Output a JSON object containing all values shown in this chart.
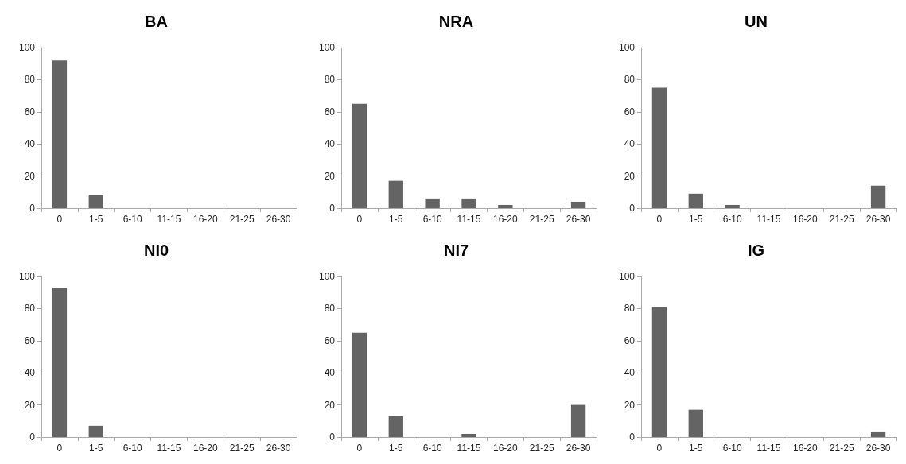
{
  "chart_data": [
    {
      "type": "bar",
      "title": "BA",
      "categories": [
        "0",
        "1-5",
        "6-10",
        "11-15",
        "16-20",
        "21-25",
        "26-30"
      ],
      "values": [
        92,
        8,
        0,
        0,
        0,
        0,
        0
      ],
      "color": "#646464",
      "ylim": [
        0,
        100
      ],
      "yticks": [
        0,
        20,
        40,
        60,
        80,
        100
      ],
      "grid": false
    },
    {
      "type": "bar",
      "title": "NRA",
      "categories": [
        "0",
        "1-5",
        "6-10",
        "11-15",
        "16-20",
        "21-25",
        "26-30"
      ],
      "values": [
        65,
        17,
        6,
        6,
        2,
        0,
        4
      ],
      "color": "#646464",
      "ylim": [
        0,
        100
      ],
      "yticks": [
        0,
        20,
        40,
        60,
        80,
        100
      ],
      "grid": false
    },
    {
      "type": "bar",
      "title": "UN",
      "categories": [
        "0",
        "1-5",
        "6-10",
        "11-15",
        "16-20",
        "21-25",
        "26-30"
      ],
      "values": [
        75,
        9,
        2,
        0,
        0,
        0,
        14
      ],
      "color": "#646464",
      "ylim": [
        0,
        100
      ],
      "yticks": [
        0,
        20,
        40,
        60,
        80,
        100
      ],
      "grid": false
    },
    {
      "type": "bar",
      "title": "NI0",
      "categories": [
        "0",
        "1-5",
        "6-10",
        "11-15",
        "16-20",
        "21-25",
        "26-30"
      ],
      "values": [
        93,
        7,
        0,
        0,
        0,
        0,
        0
      ],
      "color": "#646464",
      "ylim": [
        0,
        100
      ],
      "yticks": [
        0,
        20,
        40,
        60,
        80,
        100
      ],
      "grid": false
    },
    {
      "type": "bar",
      "title": "NI7",
      "categories": [
        "0",
        "1-5",
        "6-10",
        "11-15",
        "16-20",
        "21-25",
        "26-30"
      ],
      "values": [
        65,
        13,
        0,
        2,
        0,
        0,
        20
      ],
      "color": "#646464",
      "ylim": [
        0,
        100
      ],
      "yticks": [
        0,
        20,
        40,
        60,
        80,
        100
      ],
      "grid": false
    },
    {
      "type": "bar",
      "title": "IG",
      "categories": [
        "0",
        "1-5",
        "6-10",
        "11-15",
        "16-20",
        "21-25",
        "26-30"
      ],
      "values": [
        81,
        17,
        0,
        0,
        0,
        0,
        3
      ],
      "color": "#646464",
      "ylim": [
        0,
        100
      ],
      "yticks": [
        0,
        20,
        40,
        60,
        80,
        100
      ],
      "grid": false
    }
  ]
}
